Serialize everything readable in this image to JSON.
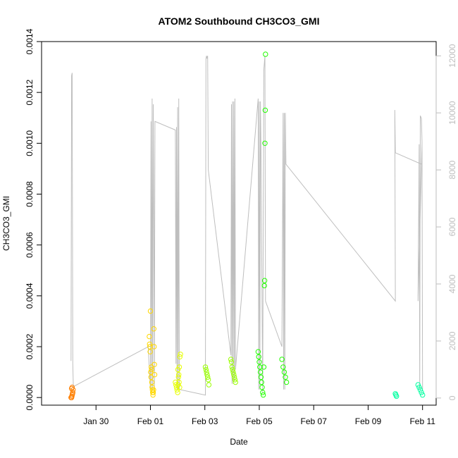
{
  "chart_data": {
    "type": "scatter",
    "title": "ATOM2 Southbound CH3CO3_GMI",
    "xlabel": "Date",
    "ylabel": "CH3CO3_GMI",
    "xlim": [
      "2017-01-28T00:00",
      "2017-02-11T12:00"
    ],
    "ylim": [
      -3e-05,
      0.0014
    ],
    "y2lim": [
      -250,
      12500
    ],
    "grid": false,
    "x_ticks": [
      {
        "label": "Jan 30",
        "t": "2017-01-30T00:00"
      },
      {
        "label": "Feb 01",
        "t": "2017-02-01T00:00"
      },
      {
        "label": "Feb 03",
        "t": "2017-02-03T00:00"
      },
      {
        "label": "Feb 05",
        "t": "2017-02-05T00:00"
      },
      {
        "label": "Feb 07",
        "t": "2017-02-07T00:00"
      },
      {
        "label": "Feb 09",
        "t": "2017-02-09T00:00"
      },
      {
        "label": "Feb 11",
        "t": "2017-02-11T00:00"
      }
    ],
    "y_ticks": [
      {
        "label": "0.0000",
        "v": 0
      },
      {
        "label": "0.0002",
        "v": 0.0002
      },
      {
        "label": "0.0004",
        "v": 0.0004
      },
      {
        "label": "0.0006",
        "v": 0.0006
      },
      {
        "label": "0.0008",
        "v": 0.0008
      },
      {
        "label": "0.0010",
        "v": 0.001
      },
      {
        "label": "0.0012",
        "v": 0.0012
      },
      {
        "label": "0.0014",
        "v": 0.0014
      }
    ],
    "y2_ticks": [
      {
        "label": "0",
        "v": 0
      },
      {
        "label": "2000",
        "v": 2000
      },
      {
        "label": "4000",
        "v": 4000
      },
      {
        "label": "6000",
        "v": 6000
      },
      {
        "label": "8000",
        "v": 8000
      },
      {
        "label": "10000",
        "v": 10000
      },
      {
        "label": "12000",
        "v": 12000
      }
    ],
    "altitude_series": {
      "color": "#bebebe",
      "points": [
        [
          "2017-01-29T02:00",
          1300
        ],
        [
          "2017-01-29T02:30",
          11300
        ],
        [
          "2017-01-29T03:00",
          11400
        ],
        [
          "2017-01-29T03:30",
          1200
        ],
        [
          "2017-01-29T04:00",
          400
        ],
        [
          "2017-01-31T22:00",
          1800
        ],
        [
          "2017-02-01T00:00",
          300
        ],
        [
          "2017-02-01T00:30",
          9700
        ],
        [
          "2017-02-01T01:00",
          300
        ],
        [
          "2017-02-01T01:30",
          10500
        ],
        [
          "2017-02-01T02:00",
          300
        ],
        [
          "2017-02-01T02:30",
          10300
        ],
        [
          "2017-02-01T03:00",
          6300
        ],
        [
          "2017-02-01T03:30",
          300
        ],
        [
          "2017-02-01T04:00",
          9700
        ],
        [
          "2017-02-01T22:00",
          9400
        ],
        [
          "2017-02-01T22:30",
          1200
        ],
        [
          "2017-02-01T23:00",
          9500
        ],
        [
          "2017-02-01T23:30",
          300
        ],
        [
          "2017-02-02T00:00",
          10200
        ],
        [
          "2017-02-02T00:30",
          300
        ],
        [
          "2017-02-02T01:00",
          10500
        ],
        [
          "2017-02-02T01:30",
          300
        ],
        [
          "2017-02-03T00:30",
          100
        ],
        [
          "2017-02-03T01:00",
          11900
        ],
        [
          "2017-02-03T01:30",
          12000
        ],
        [
          "2017-02-03T02:00",
          11900
        ],
        [
          "2017-02-03T02:30",
          12000
        ],
        [
          "2017-02-03T03:00",
          8000
        ],
        [
          "2017-02-03T23:00",
          1500
        ],
        [
          "2017-02-03T23:30",
          10300
        ],
        [
          "2017-02-04T00:00",
          500
        ],
        [
          "2017-02-04T00:30",
          10400
        ],
        [
          "2017-02-04T01:00",
          500
        ],
        [
          "2017-02-04T01:30",
          10400
        ],
        [
          "2017-02-04T02:00",
          600
        ],
        [
          "2017-02-04T02:30",
          10500
        ],
        [
          "2017-02-04T03:00",
          1000
        ],
        [
          "2017-02-04T23:00",
          10500
        ],
        [
          "2017-02-04T23:30",
          300
        ],
        [
          "2017-02-05T00:00",
          10400
        ],
        [
          "2017-02-05T00:30",
          300
        ],
        [
          "2017-02-05T01:00",
          10400
        ],
        [
          "2017-02-05T01:30",
          8800
        ],
        [
          "2017-02-05T03:00",
          200
        ],
        [
          "2017-02-05T04:00",
          11500
        ],
        [
          "2017-02-05T05:00",
          12000
        ],
        [
          "2017-02-05T05:30",
          3400
        ],
        [
          "2017-02-05T20:00",
          1800
        ],
        [
          "2017-02-05T21:00",
          10000
        ],
        [
          "2017-02-05T21:30",
          300
        ],
        [
          "2017-02-05T22:00",
          10000
        ],
        [
          "2017-02-05T22:30",
          300
        ],
        [
          "2017-02-05T23:00",
          10000
        ],
        [
          "2017-02-05T23:30",
          8200
        ],
        [
          "2017-02-10T00:00",
          3400
        ],
        [
          "2017-02-09T23:30",
          10100
        ],
        [
          "2017-02-10T00:00",
          8600
        ],
        [
          "2017-02-10T23:00",
          8200
        ],
        [
          "2017-02-10T23:30",
          8900
        ],
        [
          "2017-02-10T20:00",
          3400
        ],
        [
          "2017-02-10T21:00",
          8900
        ],
        [
          "2017-02-10T21:30",
          300
        ],
        [
          "2017-02-10T22:00",
          9900
        ],
        [
          "2017-02-10T23:00",
          9800
        ],
        [
          "2017-02-10T23:30",
          9000
        ],
        [
          "2017-02-11T00:00",
          300
        ]
      ]
    },
    "series": [
      {
        "color": "#ff7f00",
        "points": [
          [
            "2017-01-29T02:00",
            0.0
          ],
          [
            "2017-01-29T02:15",
            0.0
          ],
          [
            "2017-01-29T02:30",
            0.0
          ],
          [
            "2017-01-29T02:45",
            5e-06
          ],
          [
            "2017-01-29T03:00",
            1e-05
          ],
          [
            "2017-01-29T03:15",
            1.5e-05
          ],
          [
            "2017-01-29T03:30",
            2e-05
          ],
          [
            "2017-01-29T03:45",
            3e-05
          ],
          [
            "2017-01-29T02:30",
            3.5e-05
          ],
          [
            "2017-01-29T03:00",
            4e-05
          ]
        ]
      },
      {
        "color": "#ffd700",
        "points": [
          [
            "2017-01-31T23:00",
            0.00024
          ],
          [
            "2017-01-31T23:15",
            0.00021
          ],
          [
            "2017-01-31T23:30",
            0.0002
          ],
          [
            "2017-01-31T23:45",
            0.00018
          ],
          [
            "2017-02-01T00:00",
            0.00034
          ],
          [
            "2017-02-01T00:15",
            0.0001
          ],
          [
            "2017-02-01T00:30",
            8e-05
          ],
          [
            "2017-02-01T00:45",
            0.00012
          ],
          [
            "2017-02-01T01:00",
            0.00011
          ],
          [
            "2017-02-01T01:15",
            6e-05
          ],
          [
            "2017-02-01T01:30",
            4e-05
          ],
          [
            "2017-02-01T01:45",
            3e-05
          ],
          [
            "2017-02-01T02:00",
            2e-05
          ],
          [
            "2017-02-01T02:15",
            1e-05
          ],
          [
            "2017-02-01T02:30",
            2e-05
          ],
          [
            "2017-02-01T02:45",
            3e-05
          ],
          [
            "2017-02-01T03:00",
            0.00027
          ],
          [
            "2017-02-01T03:15",
            0.0002
          ],
          [
            "2017-02-01T03:30",
            0.00013
          ],
          [
            "2017-02-01T03:45",
            9e-05
          ]
        ]
      },
      {
        "color": "#e6ff00",
        "points": [
          [
            "2017-02-01T22:00",
            6e-05
          ],
          [
            "2017-02-01T22:30",
            5e-05
          ],
          [
            "2017-02-01T23:00",
            4e-05
          ],
          [
            "2017-02-01T23:30",
            3e-05
          ],
          [
            "2017-02-02T00:00",
            2e-05
          ],
          [
            "2017-02-02T00:30",
            5e-05
          ],
          [
            "2017-02-02T01:00",
            9e-05
          ],
          [
            "2017-02-02T01:30",
            0.00012
          ],
          [
            "2017-02-02T02:00",
            0.00016
          ],
          [
            "2017-02-02T02:30",
            0.00017
          ],
          [
            "2017-02-02T00:15",
            0.00011
          ],
          [
            "2017-02-02T00:45",
            8e-05
          ],
          [
            "2017-02-02T01:15",
            6e-05
          ],
          [
            "2017-02-02T01:45",
            4e-05
          ]
        ]
      },
      {
        "color": "#9aff00",
        "points": [
          [
            "2017-02-03T00:30",
            0.00012
          ],
          [
            "2017-02-03T01:00",
            0.00011
          ],
          [
            "2017-02-03T01:30",
            0.0001
          ],
          [
            "2017-02-03T02:00",
            9e-05
          ],
          [
            "2017-02-03T02:30",
            8e-05
          ],
          [
            "2017-02-03T03:00",
            7e-05
          ],
          [
            "2017-02-03T03:30",
            5e-05
          ],
          [
            "2017-02-03T23:00",
            0.00015
          ],
          [
            "2017-02-03T23:30",
            0.00014
          ],
          [
            "2017-02-04T00:00",
            0.00012
          ],
          [
            "2017-02-04T00:30",
            0.00011
          ],
          [
            "2017-02-04T01:00",
            0.0001
          ],
          [
            "2017-02-04T01:30",
            9e-05
          ],
          [
            "2017-02-04T02:00",
            8e-05
          ],
          [
            "2017-02-04T02:30",
            7e-05
          ],
          [
            "2017-02-04T03:00",
            6e-05
          ]
        ]
      },
      {
        "color": "#22ff00",
        "points": [
          [
            "2017-02-04T23:00",
            0.00018
          ],
          [
            "2017-02-04T23:30",
            0.00016
          ],
          [
            "2017-02-05T00:00",
            0.00014
          ],
          [
            "2017-02-05T00:30",
            0.00012
          ],
          [
            "2017-02-05T01:00",
            0.0001
          ],
          [
            "2017-02-05T01:30",
            8e-05
          ],
          [
            "2017-02-05T02:00",
            6e-05
          ],
          [
            "2017-02-05T02:30",
            4e-05
          ],
          [
            "2017-02-05T03:00",
            2e-05
          ],
          [
            "2017-02-05T03:30",
            1e-05
          ],
          [
            "2017-02-05T04:00",
            0.00012
          ],
          [
            "2017-02-05T04:30",
            0.00044
          ],
          [
            "2017-02-05T04:45",
            0.00046
          ],
          [
            "2017-02-05T05:00",
            0.001
          ],
          [
            "2017-02-05T05:15",
            0.00113
          ],
          [
            "2017-02-05T05:30",
            0.00135
          ],
          [
            "2017-02-05T20:00",
            0.00015
          ],
          [
            "2017-02-05T21:00",
            0.00012
          ],
          [
            "2017-02-05T22:00",
            0.0001
          ],
          [
            "2017-02-05T23:00",
            8e-05
          ],
          [
            "2017-02-06T00:00",
            6e-05
          ]
        ]
      },
      {
        "color": "#00ffa0",
        "points": [
          [
            "2017-02-10T00:00",
            1.5e-05
          ],
          [
            "2017-02-10T00:30",
            1e-05
          ],
          [
            "2017-02-10T01:00",
            5e-06
          ],
          [
            "2017-02-10T20:00",
            5e-05
          ],
          [
            "2017-02-10T21:00",
            4e-05
          ],
          [
            "2017-02-10T22:00",
            3e-05
          ],
          [
            "2017-02-10T23:00",
            2e-05
          ],
          [
            "2017-02-11T00:00",
            1e-05
          ]
        ]
      }
    ]
  }
}
